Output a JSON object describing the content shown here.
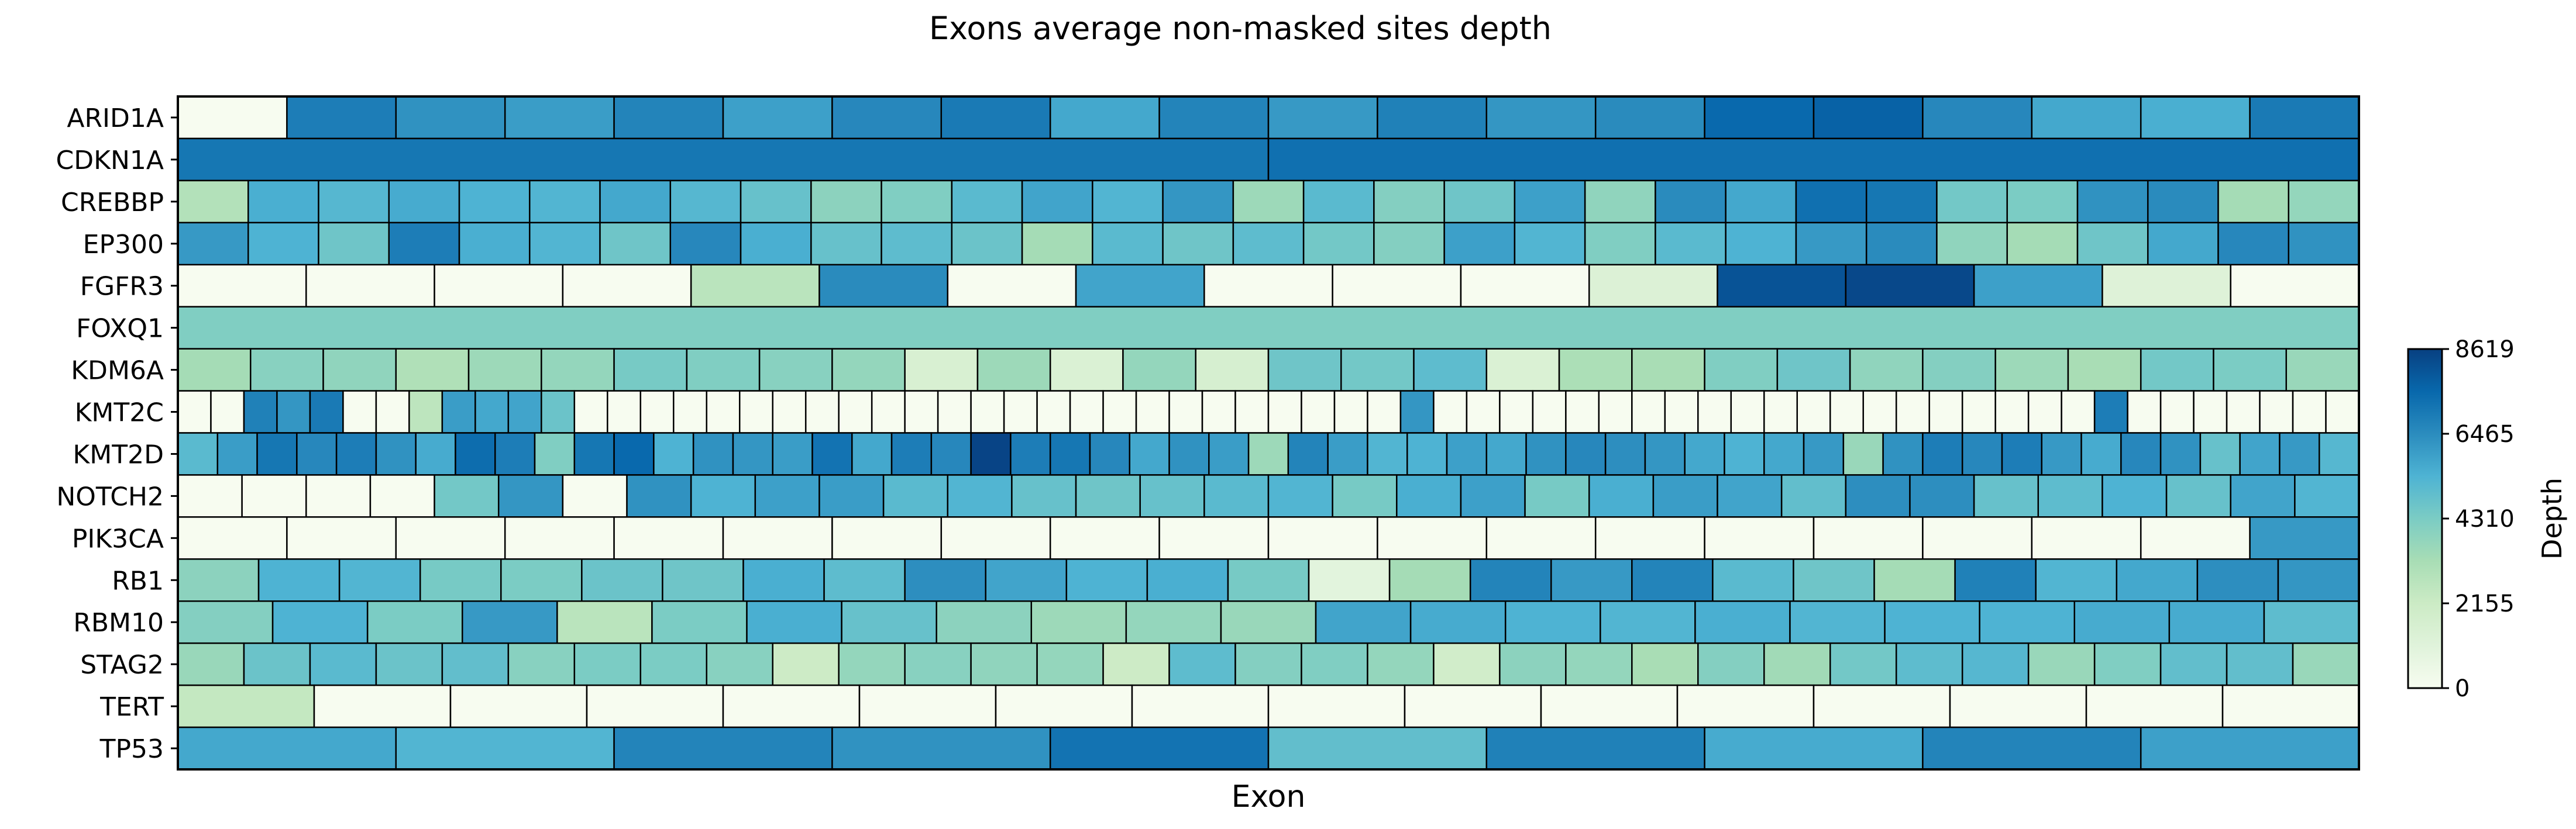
{
  "chart_data": {
    "type": "heatmap",
    "title": "Exons average non-masked sites depth",
    "xlabel": "Exon",
    "ylabel": "",
    "colorbar": {
      "label": "Depth",
      "min": 0,
      "max": 8619,
      "ticks": [
        0,
        2155,
        4310,
        6465,
        8619
      ],
      "tick_labels": [
        "0",
        "2155",
        "4310",
        "6465",
        "8619"
      ],
      "colors": [
        "#f7fcf0",
        "#e0f3db",
        "#ccebc5",
        "#a8ddb5",
        "#7bccc4",
        "#4eb3d3",
        "#2b8cbe",
        "#0868ac",
        "#084081"
      ]
    },
    "cell_border_color": "#000000",
    "rows": [
      {
        "gene": "ARID1A",
        "values": [
          0,
          6900,
          6300,
          6000,
          6700,
          5900,
          6600,
          7000,
          5700,
          6700,
          6100,
          6800,
          6200,
          6500,
          7500,
          7700,
          6600,
          5700,
          5500,
          7000
        ]
      },
      {
        "gene": "CDKN1A",
        "values": [
          7100,
          7300
        ]
      },
      {
        "gene": "CREBBP",
        "values": [
          2900,
          5500,
          5200,
          5600,
          5400,
          5300,
          5700,
          5200,
          4800,
          3900,
          4200,
          5100,
          5800,
          5300,
          6200,
          3500,
          5100,
          4100,
          4600,
          5900,
          3800,
          6500,
          5700,
          7300,
          7100,
          4500,
          4300,
          6300,
          6500,
          3300,
          3700
        ]
      },
      {
        "gene": "EP300",
        "values": [
          6100,
          5400,
          4600,
          6900,
          5500,
          5300,
          4600,
          6600,
          5500,
          4800,
          5000,
          4700,
          3300,
          5100,
          4600,
          5000,
          4500,
          4100,
          5900,
          5300,
          4200,
          5100,
          5400,
          6100,
          6500,
          3800,
          3300,
          4600,
          5700,
          6600,
          6300
        ]
      },
      {
        "gene": "FGFR3",
        "values": [
          0,
          0,
          0,
          0,
          2700,
          6500,
          0,
          5800,
          0,
          0,
          0,
          1300,
          8100,
          8400,
          5900,
          1200,
          0
        ]
      },
      {
        "gene": "FOXQ1",
        "values": [
          4200
        ]
      },
      {
        "gene": "KDM6A",
        "values": [
          3300,
          4000,
          3800,
          3000,
          3500,
          3700,
          4400,
          4200,
          4000,
          3700,
          1500,
          3500,
          1400,
          3700,
          1600,
          4600,
          4500,
          5000,
          1400,
          3100,
          3200,
          4200,
          4600,
          3800,
          4100,
          3500,
          3200,
          4500,
          4300,
          3600
        ]
      },
      {
        "gene": "KMT2C",
        "values": [
          0,
          0,
          6800,
          6200,
          7000,
          0,
          0,
          2600,
          6000,
          5700,
          5800,
          4700,
          0,
          0,
          0,
          0,
          0,
          0,
          0,
          0,
          0,
          0,
          0,
          0,
          0,
          0,
          0,
          0,
          0,
          0,
          0,
          0,
          0,
          0,
          0,
          0,
          0,
          6200,
          0,
          0,
          0,
          0,
          0,
          0,
          0,
          0,
          0,
          0,
          0,
          0,
          0,
          0,
          0,
          0,
          0,
          0,
          0,
          0,
          6900,
          0,
          0,
          0,
          0,
          0,
          0,
          0
        ]
      },
      {
        "gene": "KMT2D",
        "values": [
          5100,
          6000,
          7100,
          6600,
          6900,
          6300,
          5600,
          7400,
          6900,
          4200,
          7100,
          7500,
          5400,
          6300,
          6200,
          6000,
          7200,
          5700,
          6900,
          6600,
          8500,
          6900,
          7100,
          6600,
          5700,
          6300,
          6000,
          3500,
          6700,
          6000,
          5300,
          5400,
          5900,
          5700,
          6300,
          6600,
          6400,
          6200,
          5700,
          5400,
          5700,
          6100,
          3600,
          6300,
          6900,
          6600,
          6900,
          6100,
          5600,
          6600,
          6300,
          4800,
          5800,
          6100,
          5200
        ]
      },
      {
        "gene": "NOTCH2",
        "values": [
          0,
          0,
          0,
          0,
          4500,
          6200,
          0,
          6300,
          5400,
          5900,
          6000,
          5100,
          5300,
          4800,
          4600,
          4800,
          5100,
          5300,
          4400,
          5500,
          5900,
          4400,
          5500,
          6000,
          5800,
          4900,
          6400,
          6400,
          4800,
          5000,
          5400,
          4800,
          5800,
          5300
        ]
      },
      {
        "gene": "PIK3CA",
        "values": [
          0,
          0,
          0,
          0,
          0,
          0,
          0,
          0,
          0,
          0,
          0,
          0,
          0,
          0,
          0,
          0,
          0,
          0,
          0,
          6100
        ]
      },
      {
        "gene": "RB1",
        "values": [
          3900,
          5400,
          5300,
          4400,
          4300,
          4700,
          4600,
          5500,
          5000,
          6400,
          5800,
          5400,
          5500,
          4400,
          1000,
          3300,
          6700,
          6100,
          6700,
          5100,
          4600,
          3300,
          6800,
          5300,
          5700,
          6400,
          6200
        ]
      },
      {
        "gene": "RBM10",
        "values": [
          4100,
          5400,
          4300,
          6100,
          2700,
          4300,
          5500,
          4800,
          3900,
          3500,
          3700,
          3600,
          5800,
          5600,
          5400,
          5300,
          5500,
          5300,
          5400,
          5400,
          5600,
          5600,
          5000
        ]
      },
      {
        "gene": "STAG2",
        "values": [
          3600,
          4700,
          5100,
          4700,
          4900,
          4000,
          4300,
          4300,
          4000,
          2100,
          3700,
          4000,
          3800,
          3700,
          2100,
          5000,
          4100,
          4200,
          3700,
          1900,
          3900,
          3700,
          3200,
          4100,
          3400,
          4500,
          5000,
          5200,
          3600,
          4200,
          4900,
          4900,
          3600
        ]
      },
      {
        "gene": "TERT",
        "values": [
          2400,
          0,
          0,
          0,
          0,
          0,
          0,
          0,
          0,
          0,
          0,
          0,
          0,
          0,
          0,
          0
        ]
      },
      {
        "gene": "TP53",
        "values": [
          5700,
          5300,
          6700,
          6300,
          7200,
          4900,
          6800,
          5600,
          6700,
          5900
        ]
      }
    ]
  }
}
